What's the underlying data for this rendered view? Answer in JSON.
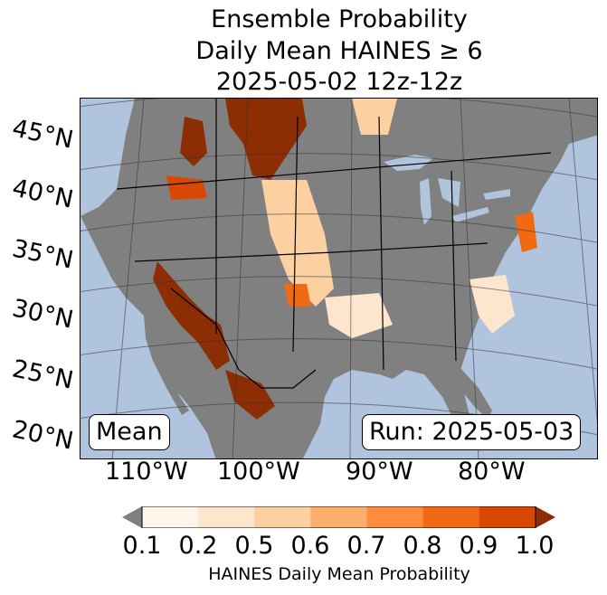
{
  "title": {
    "line1": "Ensemble Probability",
    "line2": "Daily Mean HAINES ≥ 6",
    "line3": "2025-05-02 12z-12z"
  },
  "lat_labels": [
    "45°N",
    "40°N",
    "35°N",
    "30°N",
    "25°N",
    "20°N"
  ],
  "lon_labels": [
    "110°W",
    "100°W",
    "90°W",
    "80°W"
  ],
  "mean_label": "Mean",
  "run_label": "Run: 2025-05-03",
  "colorbar": {
    "ticks": [
      "0.1",
      "0.2",
      "0.5",
      "0.6",
      "0.7",
      "0.8",
      "0.9",
      "1.0"
    ],
    "colors": [
      "#fff5eb",
      "#fee6ce",
      "#fdd0a2",
      "#fdae6b",
      "#fd8d3c",
      "#f16913",
      "#d94801"
    ],
    "under_color": "#808080",
    "over_color": "#8c2d04",
    "label": "HAINES Daily Mean Probability"
  },
  "colors": {
    "ocean": "#b0c4de",
    "land_no_data": "#808080",
    "low": "#fee6ce",
    "mid": "#fdae6b",
    "high": "#f16913",
    "max": "#8c2d04"
  }
}
